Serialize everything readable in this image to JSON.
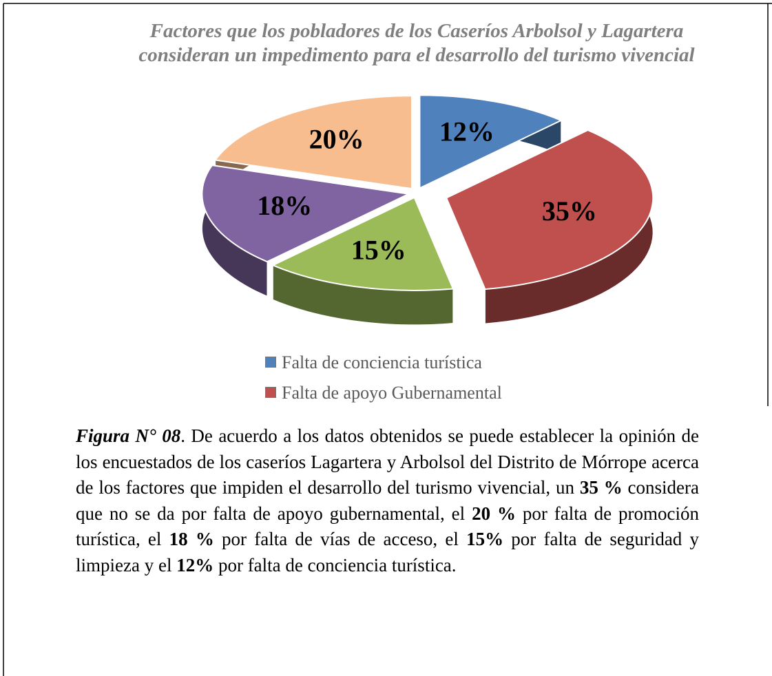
{
  "chart_data": {
    "type": "pie",
    "title": "Factores que los pobladores de los Caseríos Arbolsol y Lagartera consideran un impedimento para el desarrollo del turismo vivencial",
    "categories": [
      "Falta de conciencia turística",
      "Falta de apoyo Gubernamental",
      null,
      null,
      null
    ],
    "values": [
      12,
      35,
      15,
      18,
      20
    ],
    "value_labels": [
      "12%",
      "35%",
      "15%",
      "18%",
      "20%"
    ],
    "colors": [
      "#4f81bd",
      "#c0504d",
      "#9bbb59",
      "#8064a2",
      "#f8bd8e"
    ],
    "legend": "bottom"
  },
  "caption": {
    "runs": [
      {
        "text": "Figura N° 08",
        "style": "bolditalic"
      },
      {
        "text": ". De acuerdo a los datos obtenidos se puede establecer la opinión de los encuestados de los caseríos Lagartera y Arbolsol del Distrito de Mórrope acerca de los factores que impiden el desarrollo del turismo vivencial, un "
      },
      {
        "text": "35 %",
        "style": "bold"
      },
      {
        "text": " considera que no se da por falta de apoyo gubernamental, el "
      },
      {
        "text": "20 %",
        "style": "bold"
      },
      {
        "text": " por falta de promoción turística, el "
      },
      {
        "text": "18 %",
        "style": "bold"
      },
      {
        "text": " por falta de vías de acceso, el "
      },
      {
        "text": "15%",
        "style": "bold"
      },
      {
        "text": " por falta de seguridad y limpieza y el "
      },
      {
        "text": "12%",
        "style": "bold"
      },
      {
        "text": " por falta de conciencia turística."
      }
    ]
  }
}
